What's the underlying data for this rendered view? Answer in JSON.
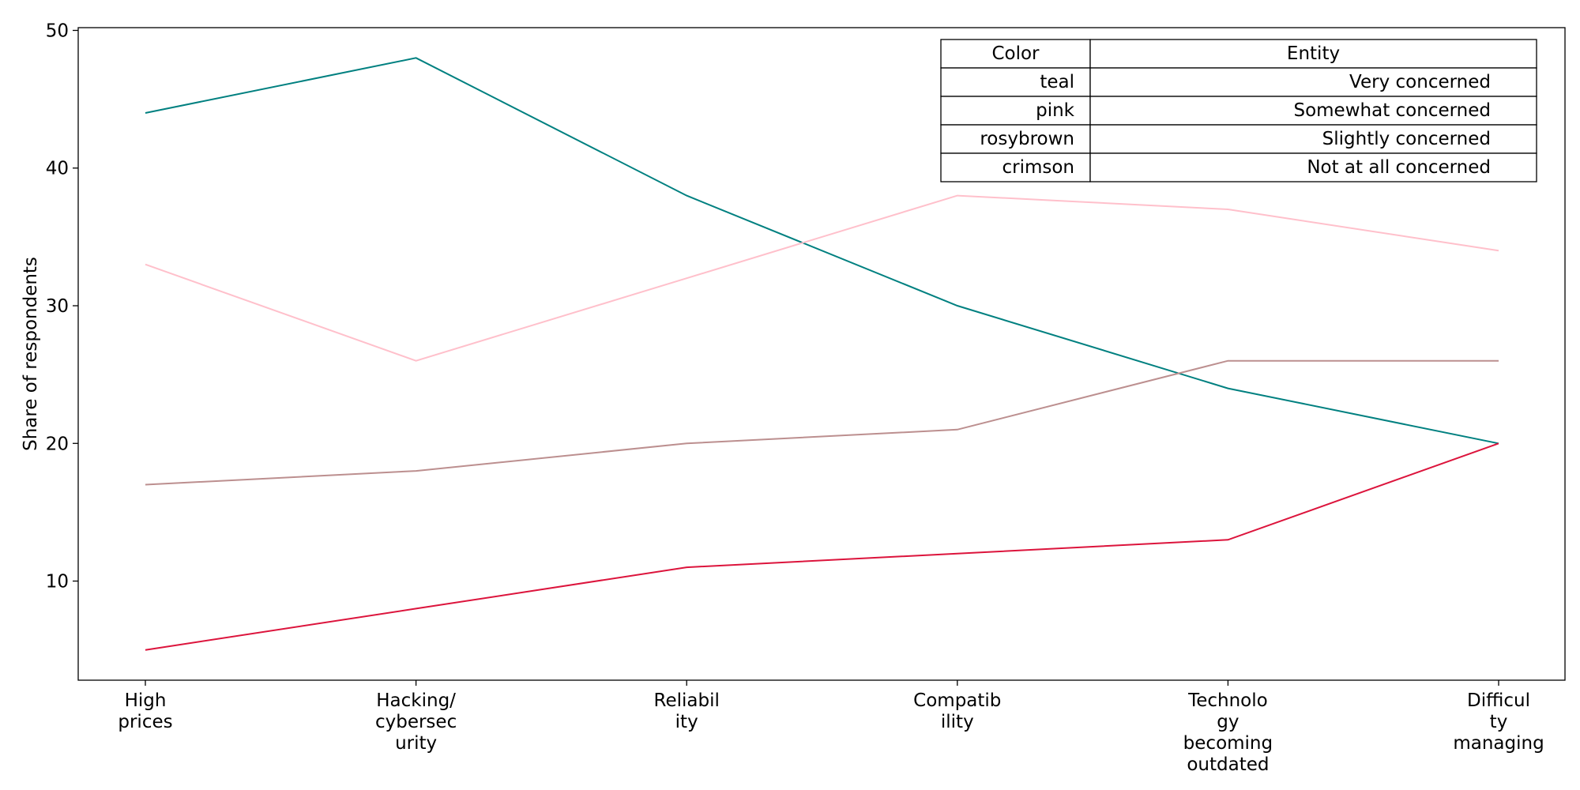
{
  "chart_data": {
    "type": "line",
    "title": "",
    "xlabel": "",
    "ylabel": "Share of respondents",
    "categories": [
      [
        "High",
        "prices"
      ],
      [
        "Hacking/",
        "cybersec",
        "urity"
      ],
      [
        "Reliabil",
        "ity"
      ],
      [
        "Compatib",
        "ility"
      ],
      [
        "Technolo",
        "gy",
        "becoming",
        "outdated"
      ],
      [
        "Difficul",
        "ty",
        "managing"
      ]
    ],
    "yticks": [
      10,
      20,
      30,
      40,
      50
    ],
    "ylim": [
      2.8,
      50.2
    ],
    "grid": false,
    "series": [
      {
        "name": "Very concerned",
        "color": "teal",
        "hex": "#008080",
        "values": [
          44,
          48,
          38,
          30,
          24,
          20
        ]
      },
      {
        "name": "Somewhat concerned",
        "color": "pink",
        "hex": "#ffc0cb",
        "values": [
          33,
          26,
          32,
          38,
          37,
          34
        ]
      },
      {
        "name": "Slightly concerned",
        "color": "rosybrown",
        "hex": "#bc8f8f",
        "values": [
          17,
          18,
          20,
          21,
          26,
          26
        ]
      },
      {
        "name": "Not at all concerned",
        "color": "crimson",
        "hex": "#dc143c",
        "values": [
          5,
          8,
          11,
          12,
          13,
          20
        ]
      }
    ],
    "legend": {
      "placement": "top-right",
      "header": [
        "Color",
        "Entity"
      ]
    }
  }
}
